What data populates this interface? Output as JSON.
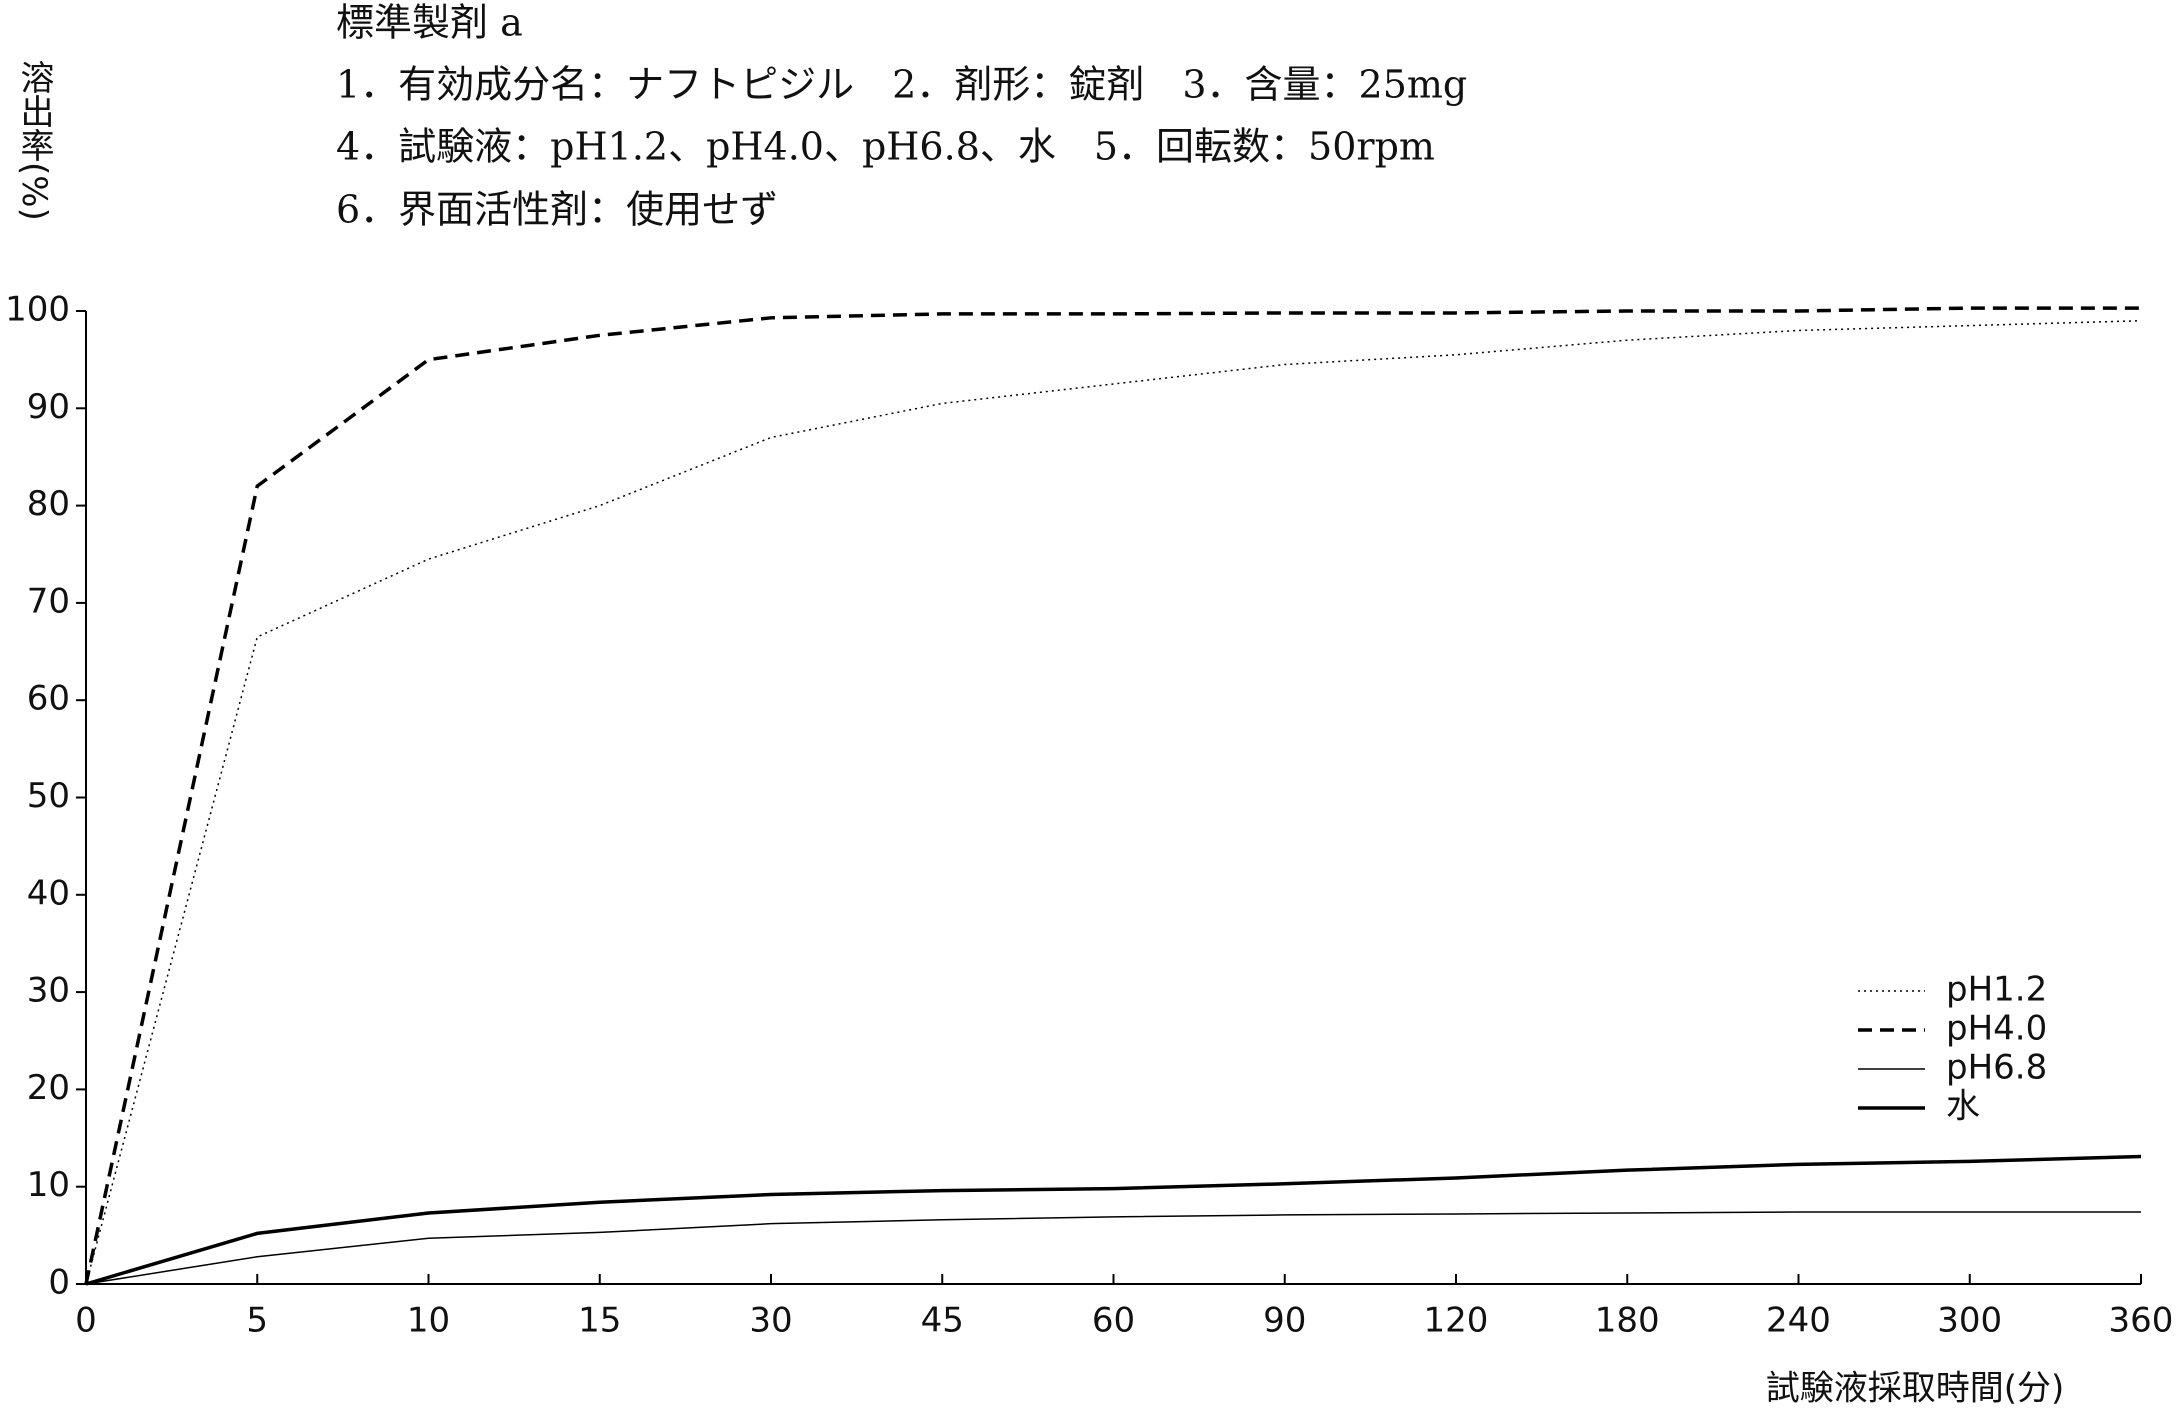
{
  "chart_data": {
    "type": "line",
    "header": [
      "標準製剤 a",
      "1．有効成分名：ナフトピジル　2．剤形：錠剤　3．含量：25mg",
      "4．試験液：pH1.2、pH4.0、pH6.8、水　5．回転数：50rpm",
      "6．界面活性剤：使用せず"
    ],
    "ylabel": "溶出率(%)",
    "xlabel": "試験液採取時間(分)",
    "categories": [
      "0",
      "5",
      "10",
      "15",
      "30",
      "45",
      "60",
      "90",
      "120",
      "180",
      "240",
      "300",
      "360"
    ],
    "ylim": [
      0,
      100
    ],
    "yticks": [
      0,
      10,
      20,
      30,
      40,
      50,
      60,
      70,
      80,
      90,
      100
    ],
    "grid": false,
    "legend": "lower-right",
    "series": [
      {
        "name": "pH1.2",
        "color": "#000000",
        "line_style": "dotted",
        "line_width": "thin",
        "values": [
          0,
          66.5,
          74.5,
          80,
          87,
          90.5,
          92.5,
          94.5,
          95.5,
          97,
          98,
          98.5,
          99
        ]
      },
      {
        "name": "pH4.0",
        "color": "#000000",
        "line_style": "dashed",
        "line_width": "thick",
        "values": [
          0,
          82,
          95,
          97.5,
          99.3,
          99.7,
          99.7,
          99.8,
          99.8,
          100,
          100,
          100.3,
          100.3
        ]
      },
      {
        "name": "pH6.8",
        "color": "#000000",
        "line_style": "solid",
        "line_width": "thin",
        "values": [
          0,
          2.8,
          4.7,
          5.3,
          6.2,
          6.6,
          6.9,
          7.1,
          7.2,
          7.3,
          7.4,
          7.4,
          7.4
        ]
      },
      {
        "name": "水",
        "color": "#000000",
        "line_style": "solid",
        "line_width": "thick",
        "values": [
          0,
          5.2,
          7.3,
          8.4,
          9.2,
          9.6,
          9.8,
          10.3,
          10.9,
          11.7,
          12.3,
          12.6,
          13.1
        ]
      }
    ]
  }
}
